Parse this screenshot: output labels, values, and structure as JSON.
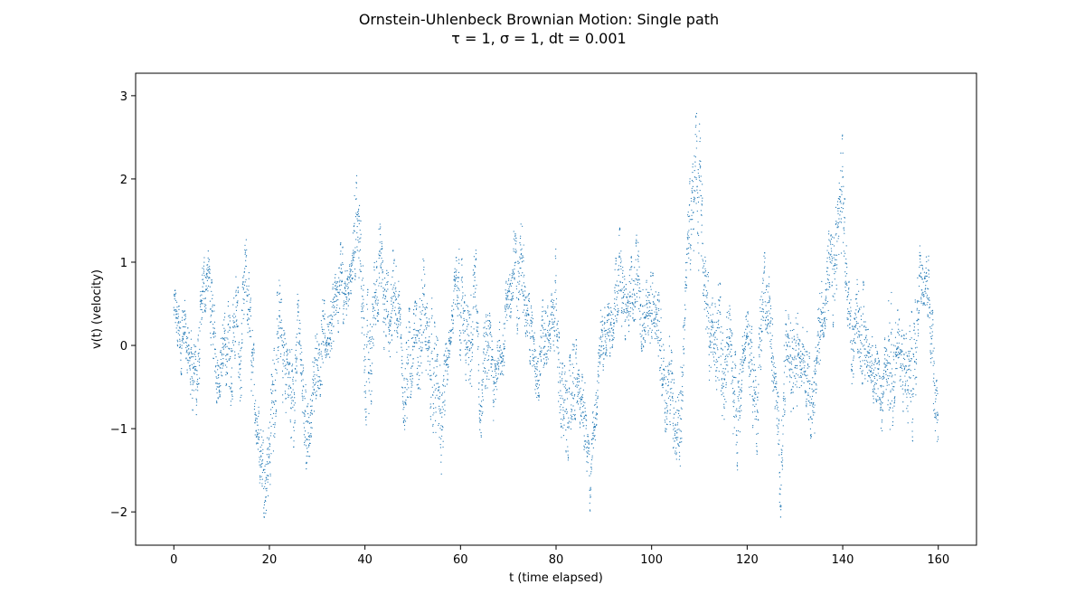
{
  "chart_data": {
    "type": "scatter",
    "title": "Ornstein-Uhlenbeck Brownian Motion: Single path",
    "subtitle": "τ = 1, σ = 1, dt = 0.001",
    "xlabel": "t (time elapsed)",
    "ylabel": "v(t) (velocity)",
    "xlim": [
      -8,
      168
    ],
    "ylim": [
      -2.4,
      3.27
    ],
    "xticks": [
      0,
      20,
      40,
      60,
      80,
      100,
      120,
      140,
      160
    ],
    "yticks": [
      -2,
      -1,
      0,
      1,
      2,
      3
    ],
    "xtick_labels": [
      "0",
      "20",
      "40",
      "60",
      "80",
      "100",
      "120",
      "140",
      "160"
    ],
    "ytick_labels": [
      "−2",
      "−1",
      "0",
      "1",
      "2",
      "3"
    ],
    "grid": false,
    "series": [
      {
        "color": "#1f77b4",
        "marker_size": 0.6,
        "envelope": [
          [
            0,
            0.1,
            0.7
          ],
          [
            1,
            -0.3,
            0.6
          ],
          [
            2,
            -0.4,
            0.7
          ],
          [
            3,
            -0.5,
            0.2
          ],
          [
            4,
            -0.8,
            0.3
          ],
          [
            5,
            -1.0,
            0.2
          ],
          [
            6,
            0.2,
            1.0
          ],
          [
            7,
            0.5,
            1.3
          ],
          [
            8,
            -0.2,
            0.8
          ],
          [
            9,
            -0.7,
            0.2
          ],
          [
            10,
            -0.6,
            0.3
          ],
          [
            11,
            -0.5,
            0.5
          ],
          [
            12,
            -0.8,
            0.6
          ],
          [
            13,
            -0.2,
            1.0
          ],
          [
            14,
            -1.1,
            0.3
          ],
          [
            15,
            0.2,
            1.4
          ],
          [
            16,
            -0.4,
            0.7
          ],
          [
            17,
            -1.1,
            -0.2
          ],
          [
            18,
            -1.7,
            -0.6
          ],
          [
            19,
            -2.1,
            -1.2
          ],
          [
            20,
            -1.8,
            -0.6
          ],
          [
            21,
            -1.2,
            0.4
          ],
          [
            22,
            -0.3,
            0.8
          ],
          [
            23,
            -0.8,
            0.5
          ],
          [
            24,
            -1.1,
            0.2
          ],
          [
            25,
            -1.4,
            0.0
          ],
          [
            26,
            0.0,
            0.7
          ],
          [
            27,
            -1.2,
            -0.2
          ],
          [
            28,
            -1.6,
            -0.5
          ],
          [
            29,
            -1.2,
            -0.2
          ],
          [
            30,
            -0.5,
            0.5
          ],
          [
            31,
            -0.7,
            0.6
          ],
          [
            32,
            -0.2,
            0.5
          ],
          [
            33,
            -0.3,
            0.7
          ],
          [
            34,
            0.1,
            0.9
          ],
          [
            35,
            0.2,
            1.3
          ],
          [
            36,
            0.3,
            1.0
          ],
          [
            37,
            0.6,
            1.2
          ],
          [
            38,
            0.8,
            2.25
          ],
          [
            39,
            0.5,
            1.6
          ],
          [
            40,
            -0.8,
            0.8
          ],
          [
            41,
            -1.4,
            0.6
          ],
          [
            42,
            0.2,
            1.2
          ],
          [
            43,
            0.3,
            1.6
          ],
          [
            44,
            -0.2,
            0.9
          ],
          [
            45,
            -0.3,
            0.9
          ],
          [
            46,
            0.2,
            1.4
          ],
          [
            47,
            -0.3,
            0.8
          ],
          [
            48,
            -0.9,
            0.2
          ],
          [
            49,
            -1.3,
            0.4
          ],
          [
            50,
            -0.4,
            0.6
          ],
          [
            51,
            -0.7,
            0.5
          ],
          [
            52,
            -0.4,
            1.3
          ],
          [
            53,
            -0.6,
            0.5
          ],
          [
            54,
            -1.0,
            0.6
          ],
          [
            55,
            -1.2,
            0.2
          ],
          [
            56,
            -1.7,
            -0.3
          ],
          [
            57,
            -0.8,
            0.2
          ],
          [
            58,
            -0.1,
            0.3
          ],
          [
            59,
            0.3,
            1.1
          ],
          [
            60,
            -0.2,
            1.3
          ],
          [
            61,
            -0.5,
            0.6
          ],
          [
            62,
            -0.9,
            0.4
          ],
          [
            63,
            0.1,
            1.6
          ],
          [
            64,
            -1.3,
            -0.3
          ],
          [
            65,
            -0.8,
            0.3
          ],
          [
            66,
            -0.5,
            0.5
          ],
          [
            67,
            -1.2,
            -0.2
          ],
          [
            68,
            -0.3,
            0.5
          ],
          [
            69,
            -0.5,
            0.5
          ],
          [
            70,
            0.2,
            1.0
          ],
          [
            71,
            0.4,
            1.5
          ],
          [
            72,
            0.1,
            1.2
          ],
          [
            73,
            0.3,
            1.9
          ],
          [
            74,
            0.0,
            0.8
          ],
          [
            75,
            -0.5,
            0.4
          ],
          [
            76,
            -0.9,
            0.3
          ],
          [
            77,
            -0.3,
            0.6
          ],
          [
            78,
            -0.5,
            0.5
          ],
          [
            79,
            0.0,
            0.6
          ],
          [
            80,
            -0.3,
            1.2
          ],
          [
            81,
            -1.2,
            -0.2
          ],
          [
            82,
            -1.6,
            -0.2
          ],
          [
            83,
            -1.2,
            -0.1
          ],
          [
            84,
            -0.9,
            0.2
          ],
          [
            85,
            -1.0,
            -0.3
          ],
          [
            86,
            -1.5,
            -0.4
          ],
          [
            87,
            -2.15,
            -1.2
          ],
          [
            88,
            -1.5,
            -0.6
          ],
          [
            89,
            -0.4,
            0.4
          ],
          [
            90,
            -0.3,
            0.5
          ],
          [
            91,
            -0.2,
            0.7
          ],
          [
            92,
            0.0,
            0.8
          ],
          [
            93,
            0.4,
            1.7
          ],
          [
            94,
            0.1,
            0.9
          ],
          [
            95,
            0.0,
            0.7
          ],
          [
            96,
            0.3,
            1.2
          ],
          [
            97,
            0.2,
            1.4
          ],
          [
            98,
            -0.1,
            0.7
          ],
          [
            99,
            0.1,
            0.8
          ],
          [
            100,
            -0.2,
            0.9
          ],
          [
            101,
            0.0,
            0.8
          ],
          [
            102,
            -0.6,
            0.5
          ],
          [
            103,
            -1.1,
            0.0
          ],
          [
            104,
            -1.0,
            0.2
          ],
          [
            105,
            -1.5,
            -0.3
          ],
          [
            106,
            -1.7,
            -0.3
          ],
          [
            107,
            0.3,
            1.2
          ],
          [
            108,
            0.8,
            2.0
          ],
          [
            109,
            1.2,
            2.7
          ],
          [
            110,
            0.8,
            3.0
          ],
          [
            111,
            0.3,
            1.3
          ],
          [
            112,
            -0.4,
            0.9
          ],
          [
            113,
            -0.7,
            0.5
          ],
          [
            114,
            -0.5,
            1.0
          ],
          [
            115,
            -1.0,
            0.3
          ],
          [
            116,
            -0.5,
            0.7
          ],
          [
            117,
            -1.3,
            0.1
          ],
          [
            118,
            -1.7,
            -0.2
          ],
          [
            119,
            -0.5,
            0.3
          ],
          [
            120,
            -0.3,
            0.6
          ],
          [
            121,
            -0.9,
            0.3
          ],
          [
            122,
            -1.4,
            -0.2
          ],
          [
            123,
            -0.1,
            1.0
          ],
          [
            124,
            0.1,
            1.2
          ],
          [
            125,
            -0.4,
            0.6
          ],
          [
            126,
            -1.2,
            -0.3
          ],
          [
            127,
            -2.1,
            -0.8
          ],
          [
            128,
            -0.6,
            0.5
          ],
          [
            129,
            -0.8,
            0.3
          ],
          [
            130,
            -1.0,
            0.6
          ],
          [
            131,
            -0.5,
            0.4
          ],
          [
            132,
            -0.6,
            0.3
          ],
          [
            133,
            -1.0,
            0.2
          ],
          [
            134,
            -1.4,
            -0.2
          ],
          [
            135,
            -0.4,
            0.8
          ],
          [
            136,
            0.1,
            0.8
          ],
          [
            137,
            0.1,
            1.4
          ],
          [
            138,
            0.2,
            1.3
          ],
          [
            139,
            0.8,
            2.0
          ],
          [
            140,
            0.9,
            2.6
          ],
          [
            141,
            0.0,
            0.9
          ],
          [
            142,
            -0.5,
            0.5
          ],
          [
            143,
            0.0,
            0.8
          ],
          [
            144,
            -0.5,
            0.9
          ],
          [
            145,
            -0.5,
            0.5
          ],
          [
            146,
            -0.6,
            0.3
          ],
          [
            147,
            -1.0,
            0.0
          ],
          [
            148,
            -1.2,
            -0.3
          ],
          [
            149,
            -0.6,
            0.2
          ],
          [
            150,
            -1.3,
            1.0
          ],
          [
            151,
            -0.6,
            0.5
          ],
          [
            152,
            -0.7,
            0.4
          ],
          [
            153,
            -0.9,
            0.1
          ],
          [
            154,
            -1.3,
            0.3
          ],
          [
            155,
            -1.1,
            0.6
          ],
          [
            156,
            0.4,
            1.3
          ],
          [
            157,
            0.5,
            1.55
          ],
          [
            158,
            0.3,
            1.1
          ],
          [
            159,
            -0.8,
            0.3
          ],
          [
            160,
            -1.6,
            -0.6
          ]
        ]
      }
    ]
  }
}
